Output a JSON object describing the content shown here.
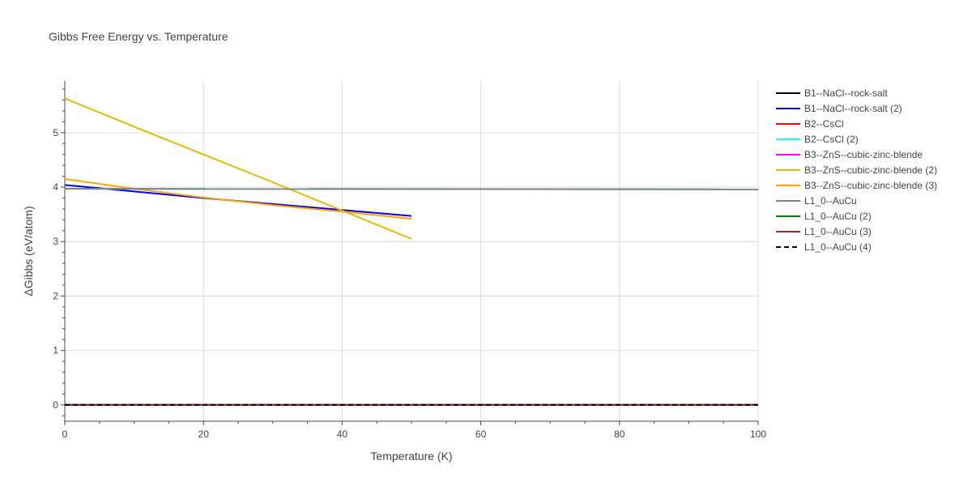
{
  "chart_data": {
    "type": "line",
    "title": "Gibbs Free Energy vs. Temperature",
    "xlabel": "Temperature (K)",
    "ylabel": "ΔGibbs (eV/atom)",
    "xlim": [
      0,
      100
    ],
    "ylim": [
      -0.3,
      5.95
    ],
    "xticks": [
      0,
      20,
      40,
      60,
      80,
      100
    ],
    "yticks": [
      0,
      1,
      2,
      3,
      4,
      5
    ],
    "grid": true,
    "legend_position": "right",
    "series": [
      {
        "name": "B1--NaCl--rock-salt",
        "color": "#000000",
        "dash": "solid",
        "x": [
          0,
          100
        ],
        "y": [
          0,
          0
        ]
      },
      {
        "name": "B1--NaCl--rock-salt (2)",
        "color": "#0000ff",
        "dash": "solid",
        "x": [
          0,
          10,
          20,
          30,
          40,
          50
        ],
        "y": [
          4.04,
          3.92,
          3.8,
          3.69,
          3.58,
          3.47
        ]
      },
      {
        "name": "B2--CsCl",
        "color": "#ff0000",
        "dash": "solid",
        "x": [
          0,
          100
        ],
        "y": [
          0,
          0
        ]
      },
      {
        "name": "B2--CsCl (2)",
        "color": "#00ffff",
        "dash": "solid",
        "x": [
          0,
          100
        ],
        "y": [
          3.97,
          3.96
        ]
      },
      {
        "name": "B3--ZnS--cubic-zinc-blende",
        "color": "#ff00ff",
        "dash": "solid",
        "x": [
          0,
          100
        ],
        "y": [
          0,
          0
        ]
      },
      {
        "name": "B3--ZnS--cubic-zinc-blende (2)",
        "color": "#e6b800",
        "dash": "solid",
        "x": [
          0,
          10,
          20,
          30,
          40,
          50
        ],
        "y": [
          5.63,
          5.11,
          4.6,
          4.09,
          3.57,
          3.05
        ]
      },
      {
        "name": "B3--ZnS--cubic-zinc-blende (3)",
        "color": "#ffa500",
        "dash": "solid",
        "x": [
          0,
          10,
          20,
          30,
          40,
          50
        ],
        "y": [
          4.15,
          3.97,
          3.81,
          3.67,
          3.55,
          3.42
        ]
      },
      {
        "name": "L1_0--AuCu",
        "color": "#808080",
        "dash": "solid",
        "x": [
          0,
          100
        ],
        "y": [
          3.97,
          3.96
        ]
      },
      {
        "name": "L1_0--AuCu (2)",
        "color": "#008000",
        "dash": "solid",
        "x": [
          0,
          100
        ],
        "y": [
          0,
          0
        ]
      },
      {
        "name": "L1_0--AuCu (3)",
        "color": "#b22222",
        "dash": "solid",
        "x": [
          0,
          100
        ],
        "y": [
          0,
          0
        ]
      },
      {
        "name": "L1_0--AuCu (4)",
        "color": "#000000",
        "dash": "dash",
        "x": [
          0,
          100
        ],
        "y": [
          0,
          0
        ]
      }
    ]
  }
}
